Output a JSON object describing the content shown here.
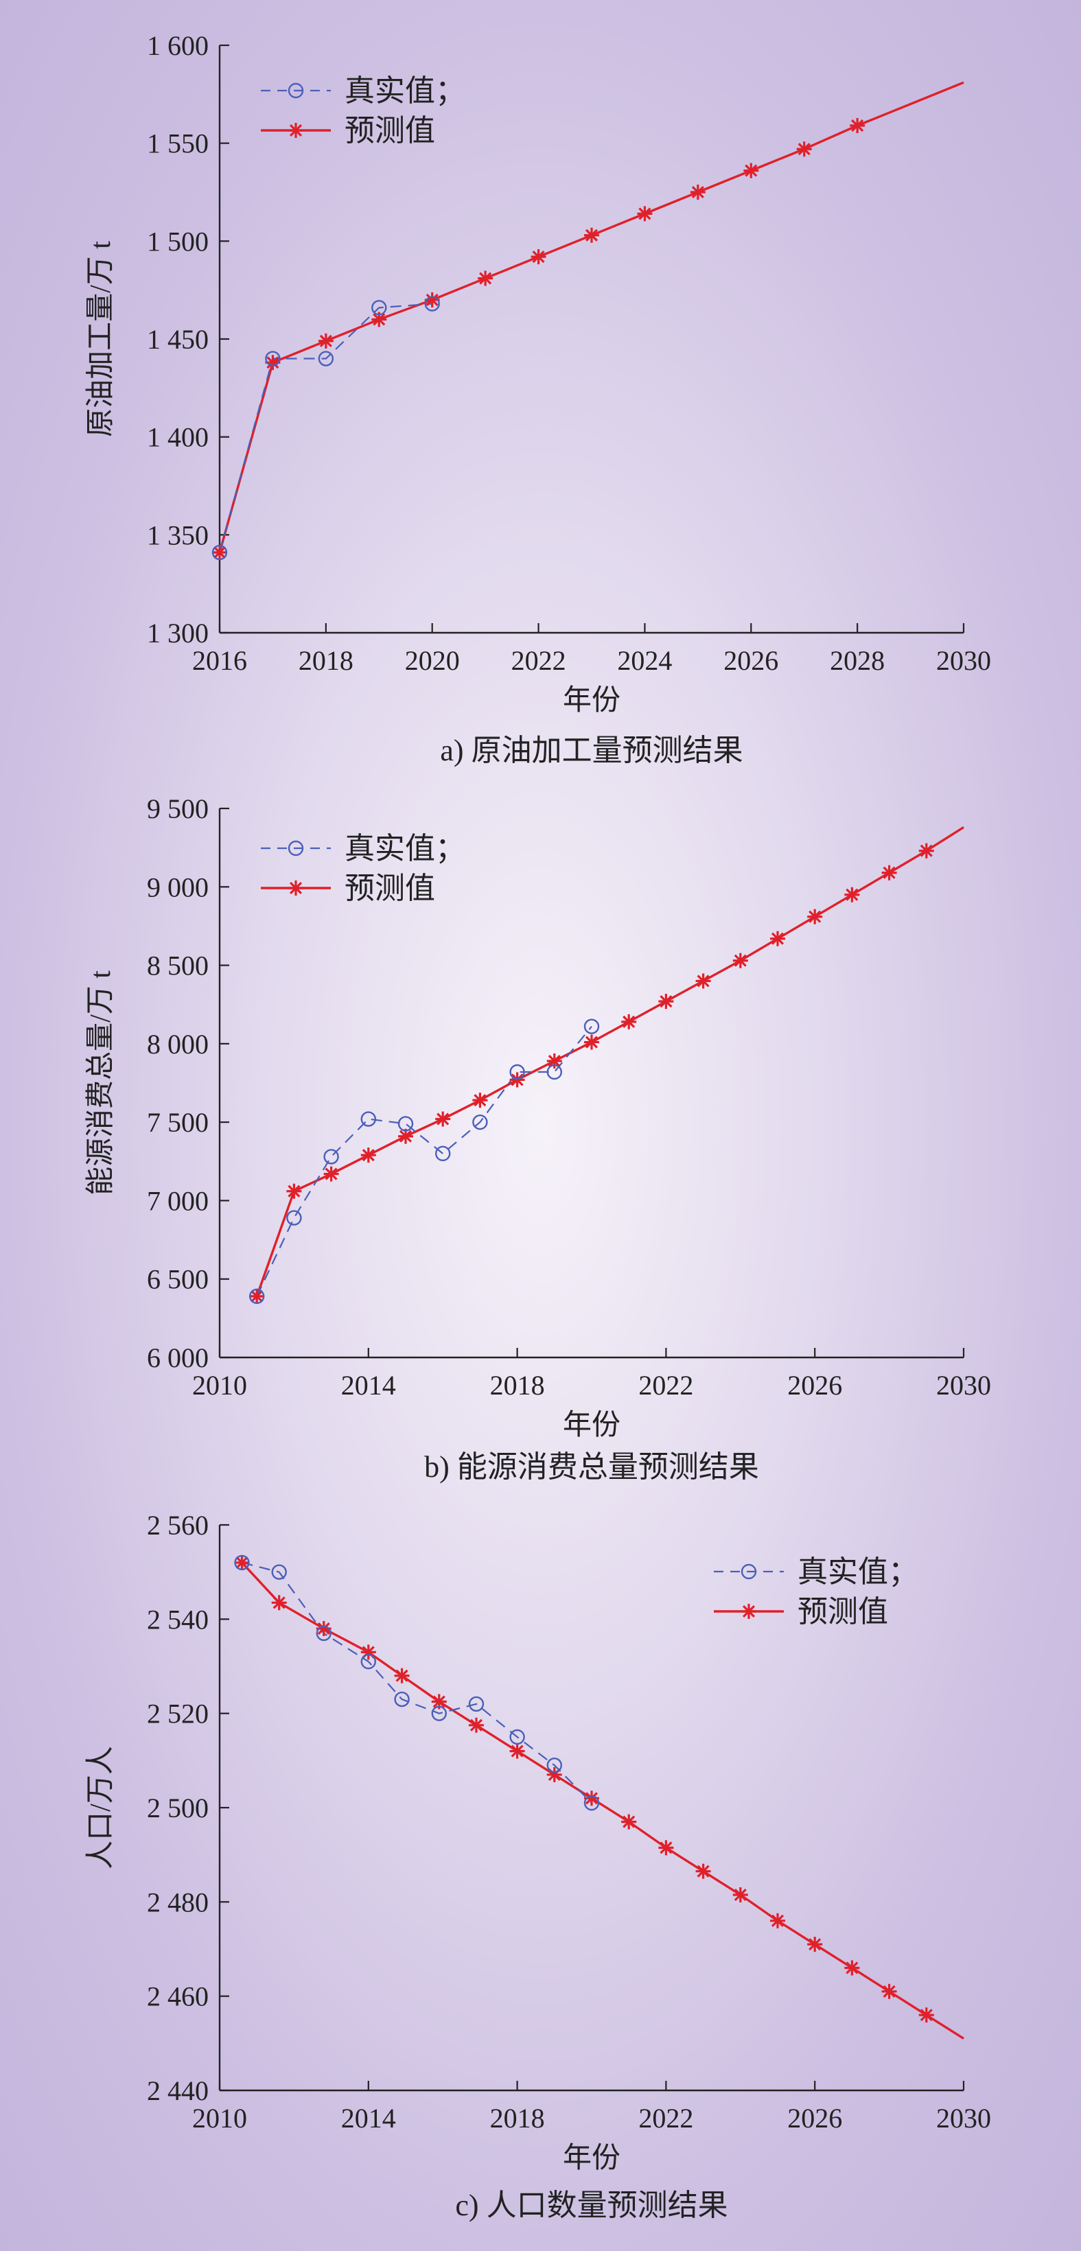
{
  "chart_data": [
    {
      "type": "line",
      "caption": "a) 原油加工量预测结果",
      "xlabel": "年份",
      "ylabel": "原油加工量/万 t",
      "xlim": [
        2016,
        2030
      ],
      "ylim": [
        1300,
        1600
      ],
      "xticks": [
        2016,
        2018,
        2020,
        2022,
        2024,
        2026,
        2028,
        2030
      ],
      "xtick_labels": [
        "2016",
        "2018",
        "2020",
        "2022",
        "2024",
        "2026",
        "2028",
        "2030"
      ],
      "yticks": [
        1300,
        1350,
        1400,
        1450,
        1500,
        1550,
        1600
      ],
      "ytick_labels": [
        "1 300",
        "1 350",
        "1 400",
        "1 450",
        "1 500",
        "1 550",
        "1 600"
      ],
      "legend_position": "top-left",
      "grid": false,
      "series": [
        {
          "name": "真实值；",
          "style": "dashed-circle",
          "color": "#4a5fb8",
          "x": [
            2016,
            2017,
            2018,
            2019,
            2020
          ],
          "y": [
            1341,
            1440,
            1440,
            1466,
            1468
          ]
        },
        {
          "name": "预测值",
          "style": "solid-star",
          "color": "#e0202a",
          "x": [
            2016,
            2017,
            2018,
            2019,
            2020,
            2021,
            2022,
            2023,
            2024,
            2025,
            2026,
            2027,
            2028
          ],
          "y": [
            1341,
            1438,
            1449,
            1460,
            1470,
            1481,
            1492,
            1503,
            1514,
            1525,
            1536,
            1547,
            1559
          ],
          "line_end": [
            2030,
            1581
          ]
        }
      ]
    },
    {
      "type": "line",
      "caption": "b) 能源消费总量预测结果",
      "xlabel": "年份",
      "ylabel": "能源消费总量/万 t",
      "xlim": [
        2010,
        2030
      ],
      "ylim": [
        6000,
        9500
      ],
      "xticks": [
        2010,
        2014,
        2018,
        2022,
        2026,
        2030
      ],
      "xtick_labels": [
        "2010",
        "2014",
        "2018",
        "2022",
        "2026",
        "2030"
      ],
      "yticks": [
        6000,
        6500,
        7000,
        7500,
        8000,
        8500,
        9000,
        9500
      ],
      "ytick_labels": [
        "6 000",
        "6 500",
        "7 000",
        "7 500",
        "8 000",
        "8 500",
        "9 000",
        "9 500"
      ],
      "legend_position": "top-left",
      "grid": false,
      "series": [
        {
          "name": "真实值；",
          "style": "dashed-circle",
          "color": "#4a5fb8",
          "x": [
            2011,
            2012,
            2013,
            2014,
            2015,
            2016,
            2017,
            2018,
            2019,
            2020
          ],
          "y": [
            6390,
            6890,
            7280,
            7520,
            7490,
            7300,
            7500,
            7820,
            7820,
            8110
          ]
        },
        {
          "name": "预测值",
          "style": "solid-star",
          "color": "#e0202a",
          "x": [
            2011,
            2012,
            2013,
            2014,
            2015,
            2016,
            2017,
            2018,
            2019,
            2020,
            2021,
            2022,
            2023,
            2024,
            2025,
            2026,
            2027,
            2028,
            2029
          ],
          "y": [
            6390,
            7060,
            7170,
            7290,
            7410,
            7520,
            7640,
            7770,
            7890,
            8010,
            8140,
            8270,
            8400,
            8530,
            8670,
            8810,
            8950,
            9090,
            9230
          ],
          "line_end": [
            2030,
            9380
          ]
        }
      ]
    },
    {
      "type": "line",
      "caption": "c) 人口数量预测结果",
      "xlabel": "年份",
      "ylabel": "人口/万人",
      "xlim": [
        2010,
        2030
      ],
      "ylim": [
        2440,
        2560
      ],
      "xticks": [
        2010,
        2014,
        2018,
        2022,
        2026,
        2030
      ],
      "xtick_labels": [
        "2010",
        "2014",
        "2018",
        "2022",
        "2026",
        "2030"
      ],
      "yticks": [
        2440,
        2460,
        2480,
        2500,
        2520,
        2540,
        2560
      ],
      "ytick_labels": [
        "2 440",
        "2 460",
        "2 480",
        "2 500",
        "2 520",
        "2 540",
        "2 560"
      ],
      "legend_position": "top-right",
      "grid": false,
      "series": [
        {
          "name": "真实值；",
          "style": "dashed-circle",
          "color": "#4a5fb8",
          "x": [
            2010.6,
            2011.6,
            2012.8,
            2014,
            2014.9,
            2015.9,
            2016.9,
            2018,
            2019,
            2020
          ],
          "y": [
            2552,
            2550,
            2537,
            2531,
            2523,
            2520,
            2522,
            2515,
            2509,
            2501
          ]
        },
        {
          "name": "预测值",
          "style": "solid-star",
          "color": "#e0202a",
          "x": [
            2010.6,
            2011.6,
            2012.8,
            2014,
            2014.9,
            2015.9,
            2016.9,
            2018,
            2019,
            2020,
            2021,
            2022,
            2023,
            2024,
            2025,
            2026,
            2027,
            2028,
            2029
          ],
          "y": [
            2552,
            2543.5,
            2538,
            2533,
            2528,
            2522.5,
            2517.5,
            2512,
            2507,
            2502,
            2497,
            2491.5,
            2486.5,
            2481.5,
            2476,
            2471,
            2466,
            2461,
            2456
          ],
          "line_end": [
            2030,
            2451
          ]
        }
      ]
    }
  ]
}
